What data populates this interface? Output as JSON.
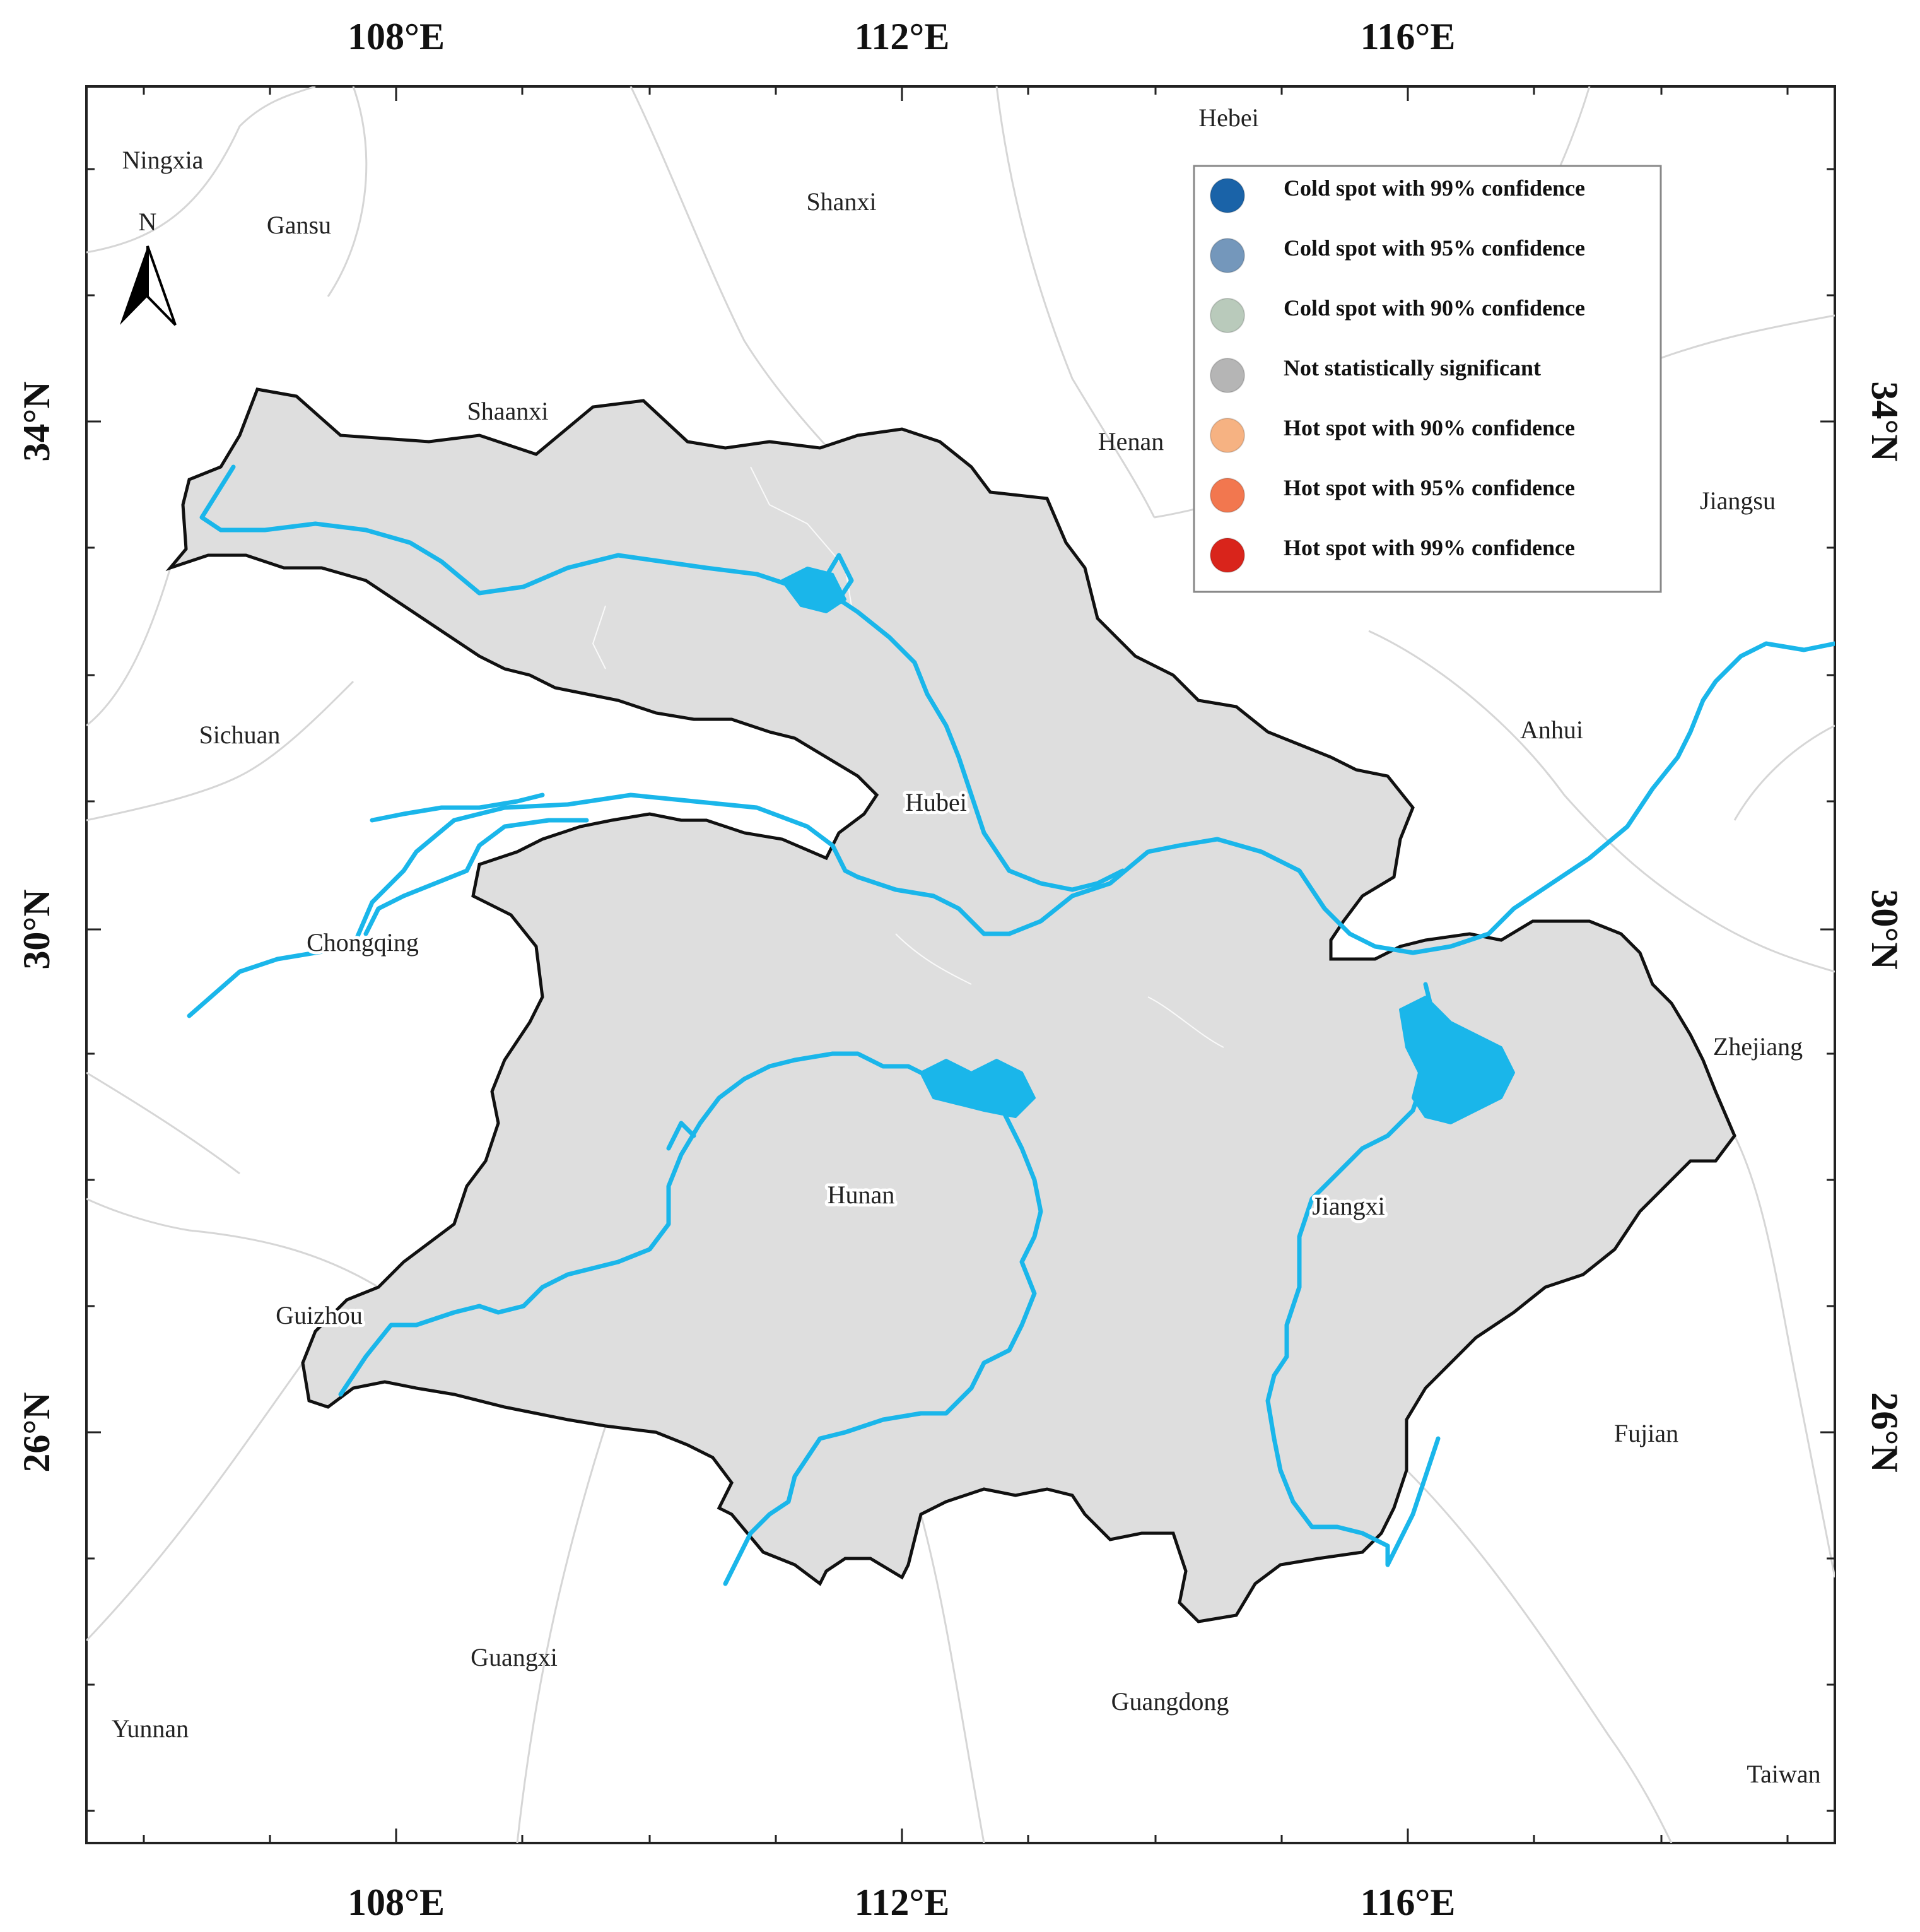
{
  "axes": {
    "longitude_labels": [
      "108°E",
      "112°E",
      "116°E"
    ],
    "latitude_labels": [
      "34°N",
      "30°N",
      "26°N"
    ]
  },
  "north_arrow": {
    "label": "N",
    "icon": "north-arrow-icon"
  },
  "outside_regions": [
    "Ningxia",
    "Gansu",
    "Shanxi",
    "Hebei",
    "Henan",
    "Jiangsu",
    "Anhui",
    "Sichuan",
    "Zhejiang",
    "Fujian",
    "Guangxi",
    "Guangdong",
    "Yunnan",
    "Taiwan"
  ],
  "study_regions": [
    "Shaanxi",
    "Hubei",
    "Chongqing",
    "Hunan",
    "Guizhou",
    "Jiangxi"
  ],
  "legend": {
    "items": [
      {
        "label": "Cold spot with 99% confidence",
        "color": "#1a63a8"
      },
      {
        "label": "Cold spot with 95% confidence",
        "color": "#7497bb"
      },
      {
        "label": "Cold spot with 90% confidence",
        "color": "#b9cabb"
      },
      {
        "label": "Not statistically significant",
        "color": "#b5b5b5"
      },
      {
        "label": "Hot spot with 90% confidence",
        "color": "#f6b282"
      },
      {
        "label": "Hot spot with 95% confidence",
        "color": "#f2774f"
      },
      {
        "label": "Hot spot with 99% confidence",
        "color": "#d9241b"
      }
    ]
  },
  "colors": {
    "river": "#1ab6ea",
    "boundary": "#111111",
    "background_region": "#d9d9d9"
  }
}
